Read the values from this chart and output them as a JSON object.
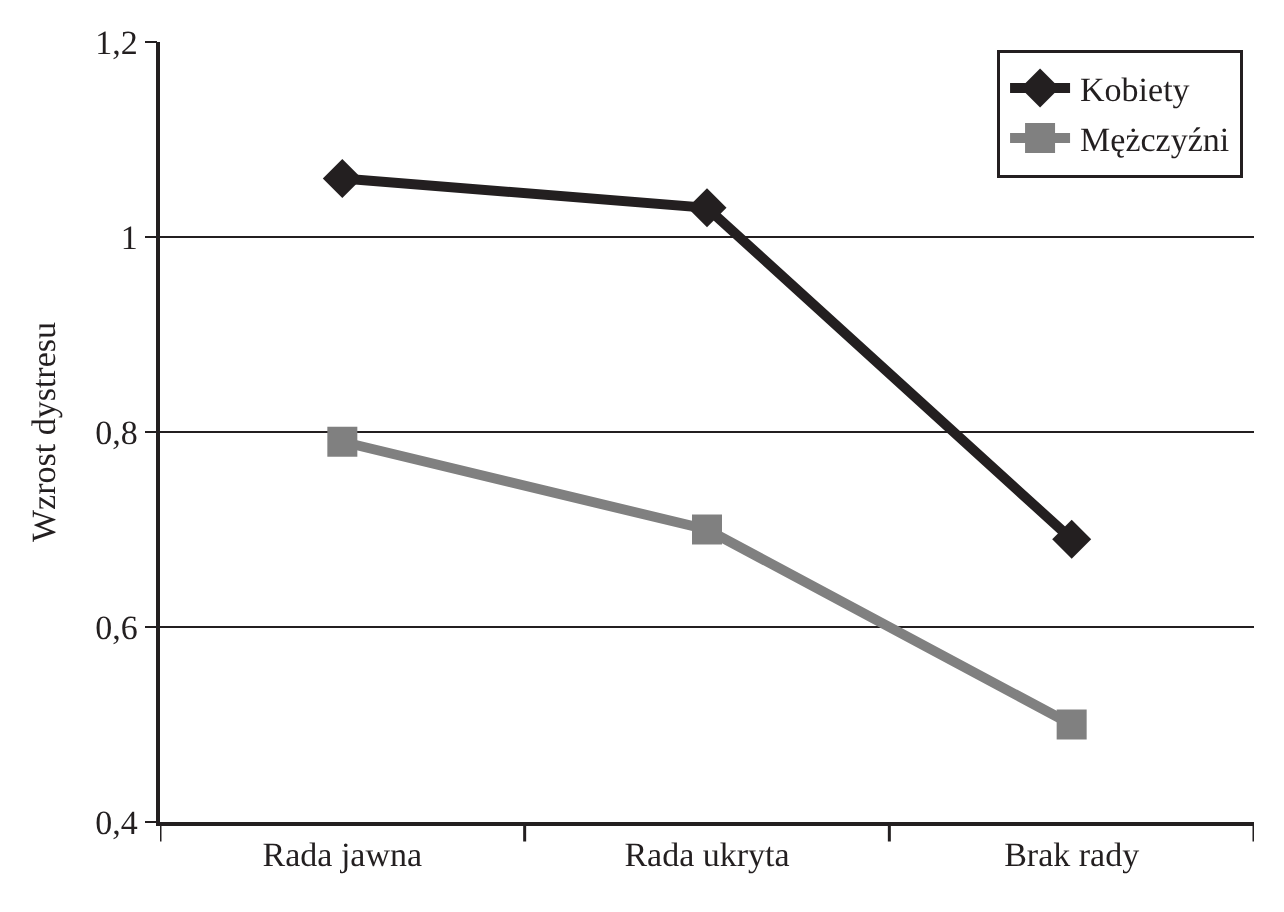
{
  "chart_data": {
    "type": "line",
    "ylabel": "Wzrost dystresu",
    "categories": [
      "Rada jawna",
      "Rada ukryta",
      "Brak rady"
    ],
    "series": [
      {
        "name": "Kobiety",
        "color": "#231f20",
        "marker": "diamond",
        "values": [
          1.06,
          1.03,
          0.69
        ]
      },
      {
        "name": "Mężczyźni",
        "color": "#808080",
        "marker": "square",
        "values": [
          0.79,
          0.7,
          0.5
        ]
      }
    ],
    "ylim": [
      0.4,
      1.2
    ],
    "yticks": [
      {
        "value": 0.4,
        "label": "0,4"
      },
      {
        "value": 0.6,
        "label": "0,6"
      },
      {
        "value": 0.8,
        "label": "0,8"
      },
      {
        "value": 1.0,
        "label": "1"
      },
      {
        "value": 1.2,
        "label": "1,2"
      }
    ],
    "grid": "y",
    "legend": "top right",
    "line_style": "solid"
  }
}
